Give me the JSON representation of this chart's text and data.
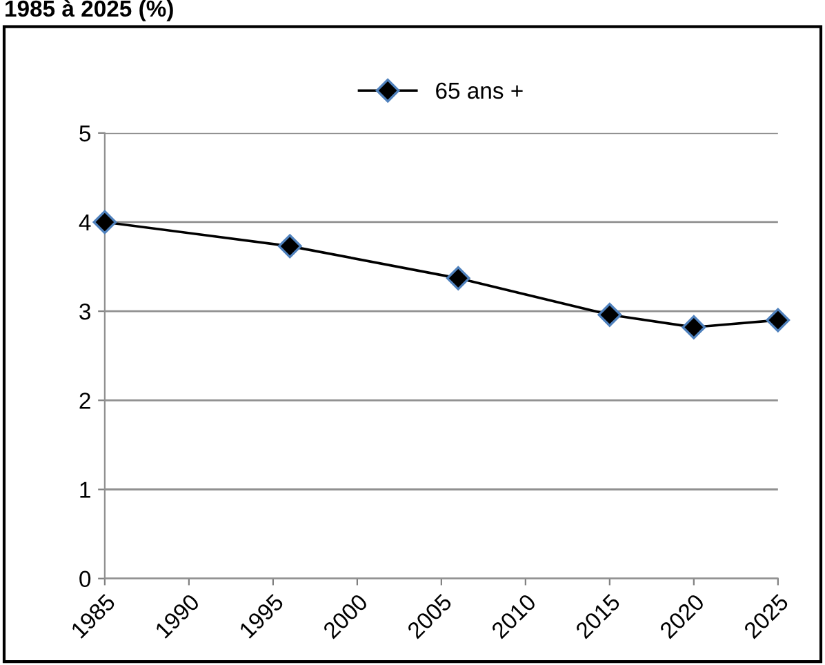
{
  "chart_data": {
    "type": "line",
    "title": "1985 à 2025 (%)",
    "x": [
      1985,
      1996,
      2006,
      2015,
      2020,
      2025
    ],
    "series": [
      {
        "name": "65 ans +",
        "color": "#000000",
        "values": [
          4.0,
          3.73,
          3.37,
          2.96,
          2.82,
          2.9
        ]
      }
    ],
    "xlim": [
      1985,
      2025
    ],
    "xticks": [
      1985,
      1990,
      1995,
      2000,
      2005,
      2010,
      2015,
      2020,
      2025
    ],
    "ylim": [
      0,
      5
    ],
    "yticks": [
      0,
      1,
      2,
      3,
      4,
      5
    ],
    "grid": "y",
    "legend": "top",
    "marker": "diamond",
    "line_style": "solid"
  }
}
